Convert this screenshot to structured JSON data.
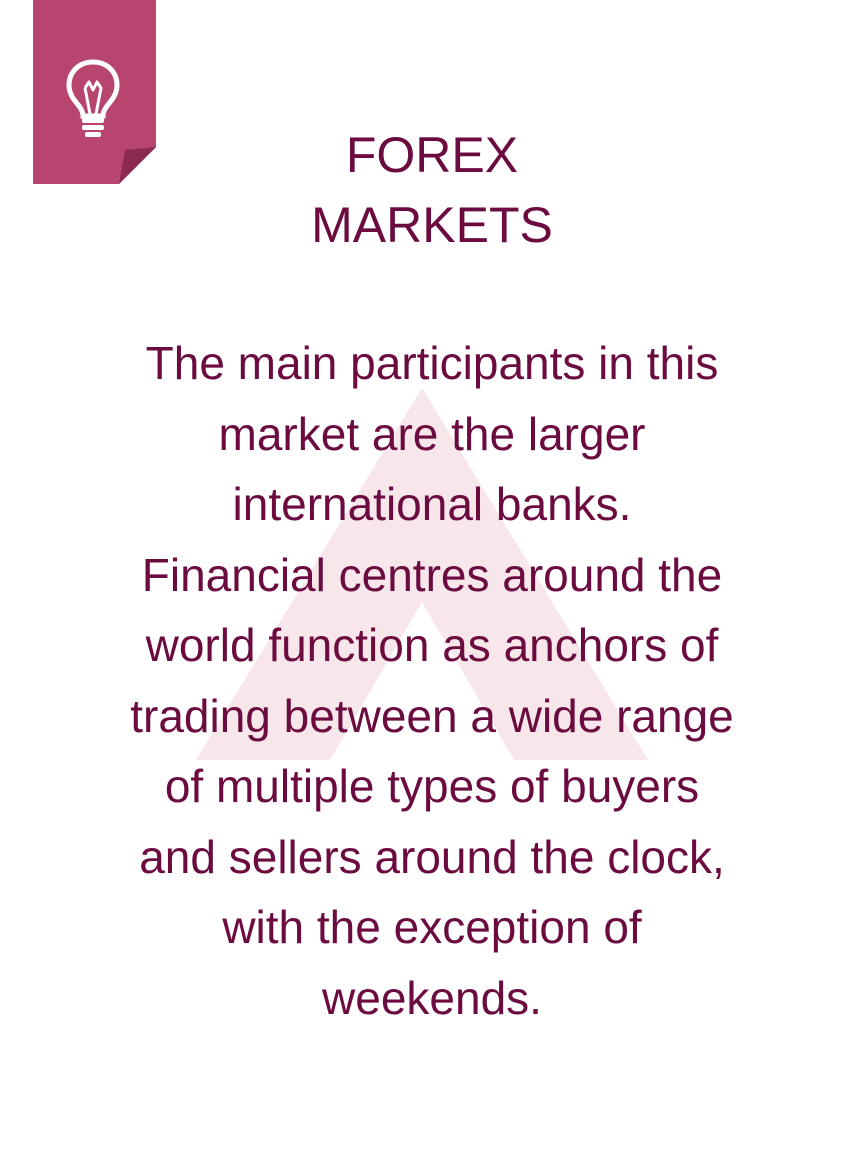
{
  "colors": {
    "text": "#6b0b3f",
    "badge": "#b8456f",
    "badge_fold": "#8c2a52",
    "watermark": "#f7e6ea",
    "bulb": "#ffffff"
  },
  "icons": {
    "badge": "lightbulb-icon",
    "watermark": "triangle-logo-icon"
  },
  "title": {
    "line1": "FOREX",
    "line2": "MARKETS"
  },
  "body": {
    "lines": [
      "The main participants in this",
      "market are the larger",
      "international banks.",
      "Financial centres around the",
      "world function as anchors of",
      "trading between a wide range",
      "of multiple types of buyers",
      "and sellers around the clock,",
      "with the exception of",
      "weekends."
    ]
  }
}
